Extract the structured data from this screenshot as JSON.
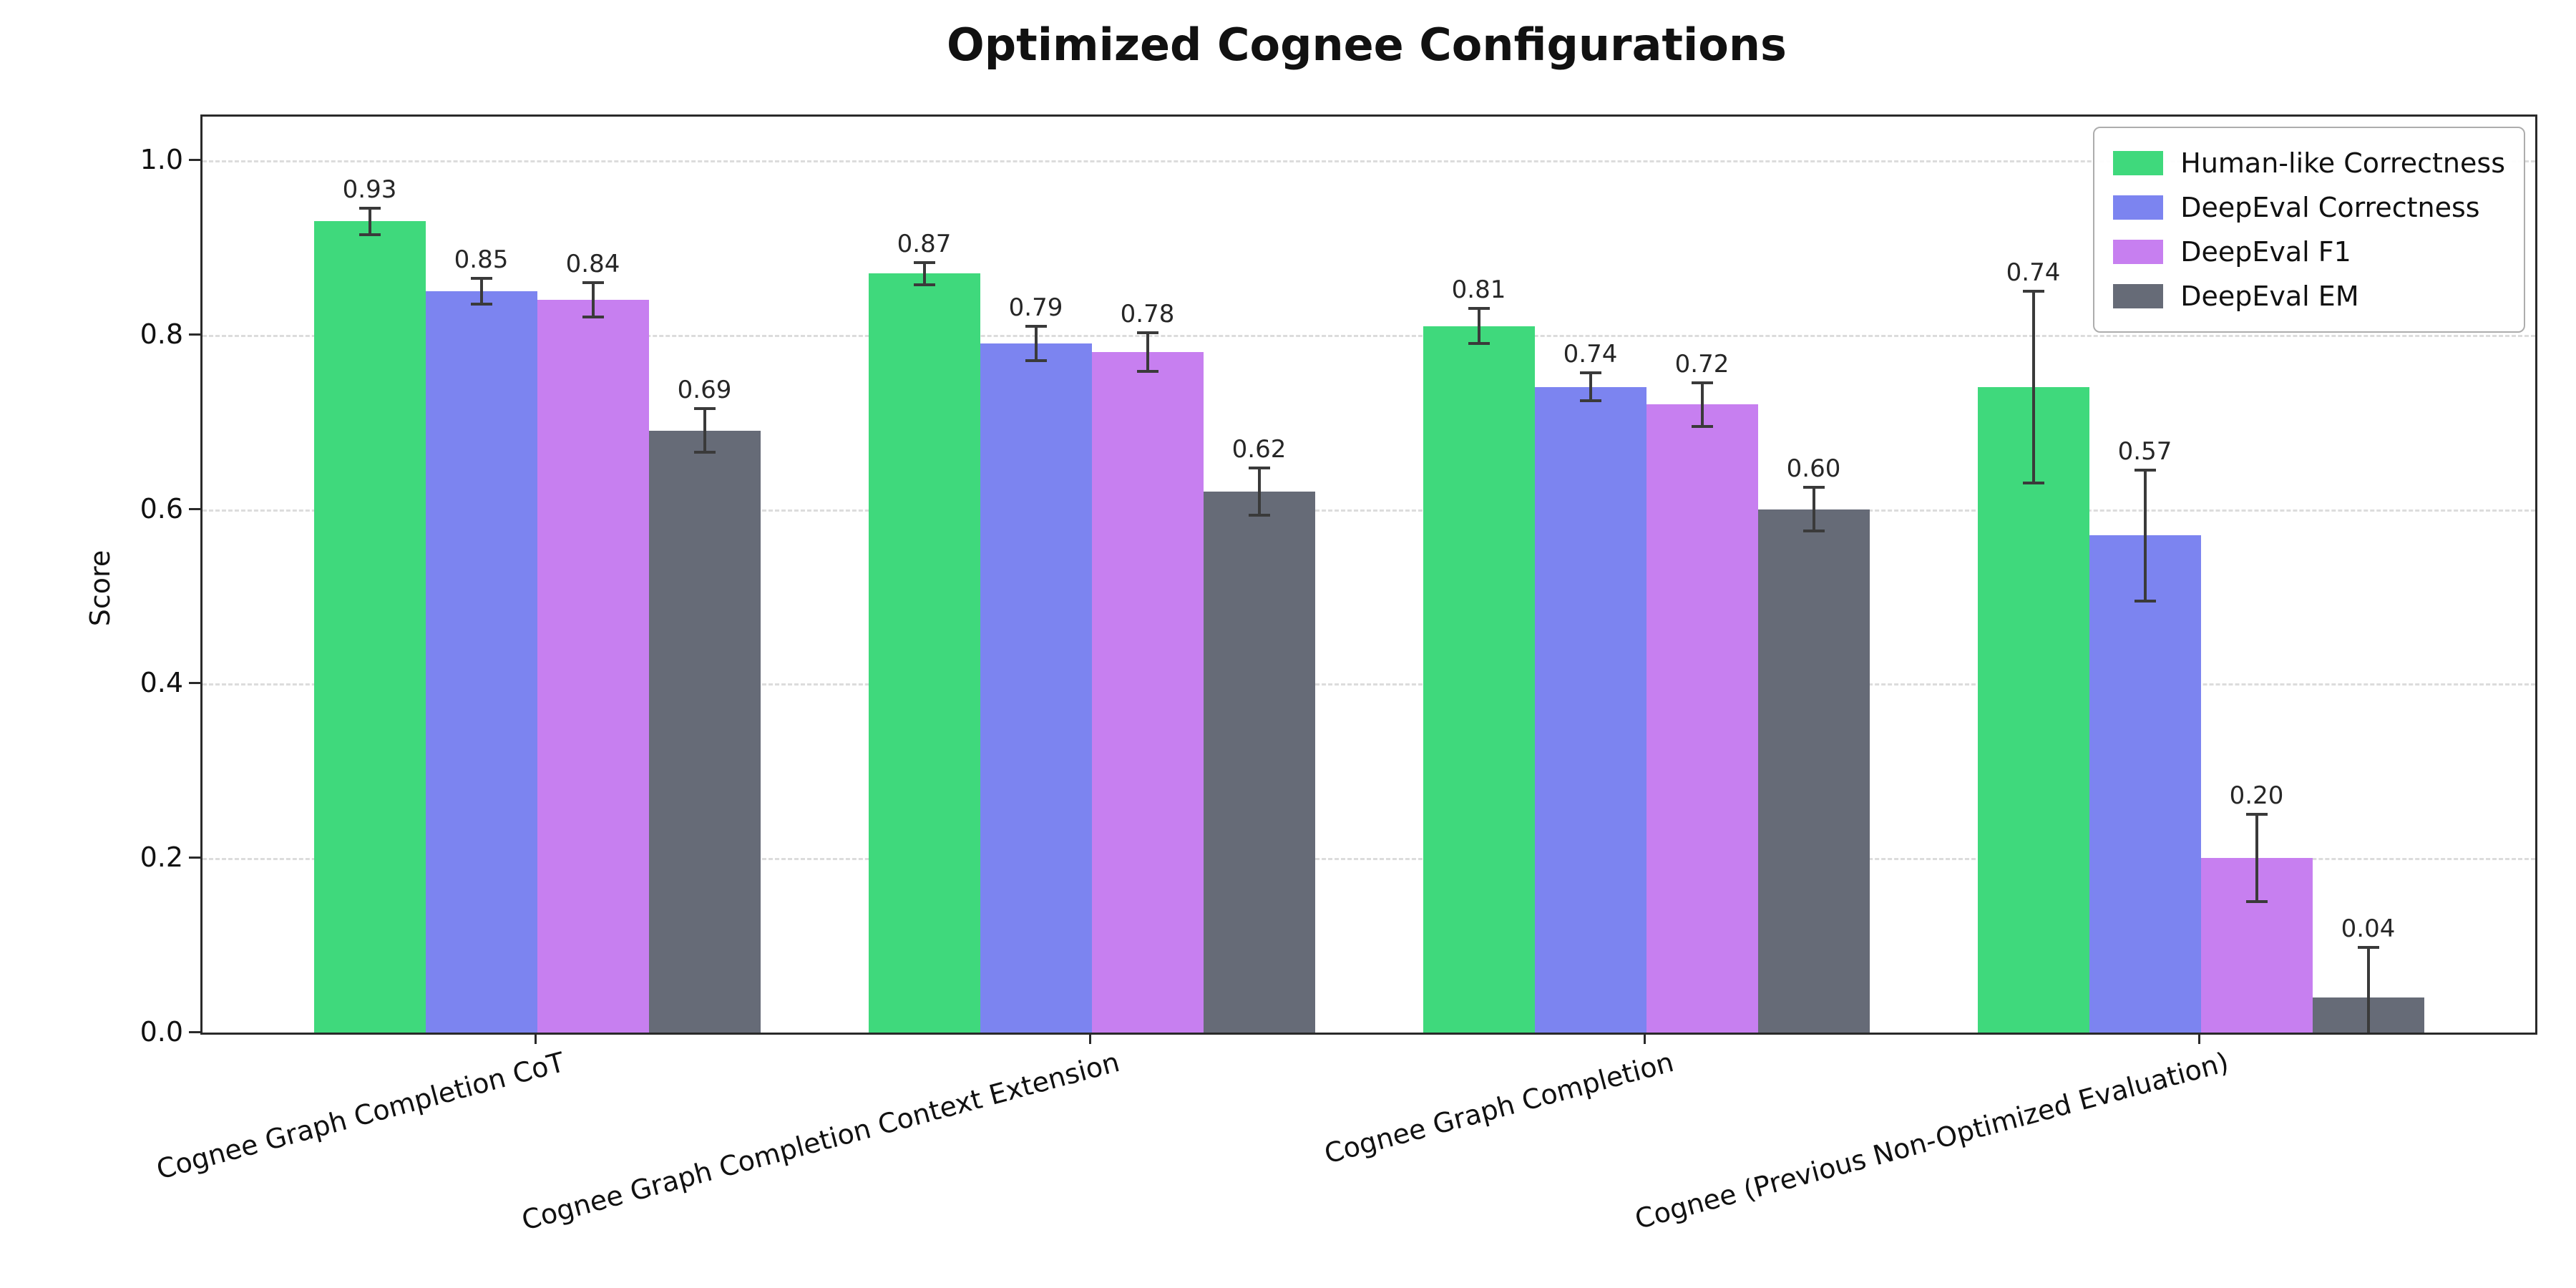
{
  "chart_data": {
    "type": "bar",
    "orientation": "vertical",
    "title": "Optimized Cognee Configurations",
    "xlabel": "",
    "ylabel": "Score",
    "ylim": [
      0,
      1.05
    ],
    "yticks": [
      0.0,
      0.2,
      0.4,
      0.6,
      0.8,
      1.0
    ],
    "grid": "horizontal-dashed",
    "grid_color": "#dcdcdc",
    "error_bars": true,
    "error_bar_color": "#3a3a3a",
    "value_label_decimals": 2,
    "legend_position": "top-right",
    "categories": [
      "Cognee Graph Completion CoT",
      "Cognee Graph Completion Context Extension",
      "Cognee Graph Completion",
      "Cognee (Previous Non-Optimized Evaluation)"
    ],
    "series": [
      {
        "name": "Human-like Correctness",
        "color": "#3fd97c",
        "values": [
          0.93,
          0.87,
          0.81,
          0.74
        ],
        "errors": [
          0.015,
          0.013,
          0.02,
          0.11
        ]
      },
      {
        "name": "DeepEval Correctness",
        "color": "#7c84f0",
        "values": [
          0.85,
          0.79,
          0.74,
          0.57
        ],
        "errors": [
          0.015,
          0.02,
          0.016,
          0.075
        ]
      },
      {
        "name": "DeepEval F1",
        "color": "#c77ff0",
        "values": [
          0.84,
          0.78,
          0.72,
          0.2
        ],
        "errors": [
          0.02,
          0.022,
          0.025,
          0.05
        ]
      },
      {
        "name": "DeepEval EM",
        "color": "#666b77",
        "values": [
          0.69,
          0.62,
          0.6,
          0.04
        ],
        "errors": [
          0.025,
          0.027,
          0.025,
          0.058
        ]
      }
    ]
  }
}
